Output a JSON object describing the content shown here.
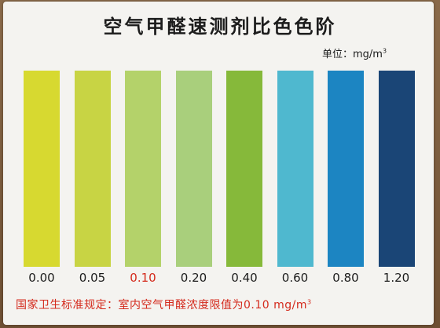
{
  "card": {
    "title": "空气甲醛速测剂比色色阶",
    "unit_label": "单位：mg/m",
    "unit_sup": "3",
    "footer_text": "国家卫生标准规定：室内空气甲醛浓度限值为0.10 mg/m",
    "footer_sup": "3"
  },
  "swatches": [
    {
      "value": "0.00",
      "color": "#d7d930",
      "highlight": false
    },
    {
      "value": "0.05",
      "color": "#c8d444",
      "highlight": false
    },
    {
      "value": "0.10",
      "color": "#b4d26a",
      "highlight": true
    },
    {
      "value": "0.20",
      "color": "#a9cf7c",
      "highlight": false
    },
    {
      "value": "0.40",
      "color": "#86b93a",
      "highlight": false
    },
    {
      "value": "0.60",
      "color": "#4fb8cf",
      "highlight": false
    },
    {
      "value": "0.80",
      "color": "#1c85c2",
      "highlight": false
    },
    {
      "value": "1.20",
      "color": "#1a4576",
      "highlight": false
    }
  ]
}
